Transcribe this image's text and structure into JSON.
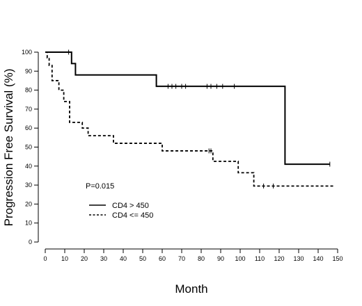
{
  "chart_data": {
    "type": "line",
    "subtype": "kaplan-meier step",
    "title": "",
    "xlabel": "Month",
    "ylabel": "Progression Free Survival (%)",
    "xlim": [
      0,
      150
    ],
    "ylim": [
      0,
      100
    ],
    "xticks": [
      0,
      10,
      20,
      30,
      40,
      50,
      60,
      70,
      80,
      90,
      100,
      110,
      120,
      130,
      140,
      150
    ],
    "yticks": [
      0,
      10,
      20,
      30,
      40,
      50,
      60,
      70,
      80,
      90,
      100
    ],
    "grid": false,
    "legend_position": "bottom-left",
    "annotation": "P=0.015",
    "series": [
      {
        "name": "CD4 > 450",
        "style": "solid",
        "color": "#000000",
        "steps": [
          [
            0,
            100
          ],
          [
            13.5,
            94
          ],
          [
            15.5,
            88
          ],
          [
            57,
            82
          ],
          [
            123,
            41
          ],
          [
            146,
            41
          ]
        ],
        "censored": [
          [
            12,
            100
          ],
          [
            63,
            82
          ],
          [
            65,
            82
          ],
          [
            67,
            82
          ],
          [
            70,
            82
          ],
          [
            72,
            82
          ],
          [
            83,
            82
          ],
          [
            85,
            82
          ],
          [
            88,
            82
          ],
          [
            91,
            82
          ],
          [
            97,
            82
          ],
          [
            146,
            41
          ]
        ]
      },
      {
        "name": "CD4 <= 450",
        "style": "dashed",
        "color": "#000000",
        "steps": [
          [
            0,
            100
          ],
          [
            1,
            97
          ],
          [
            2,
            93
          ],
          [
            3.5,
            85
          ],
          [
            7,
            80
          ],
          [
            9.5,
            74
          ],
          [
            12.5,
            63
          ],
          [
            19,
            60
          ],
          [
            22,
            56
          ],
          [
            35,
            52
          ],
          [
            60,
            48
          ],
          [
            86,
            42.5
          ],
          [
            99,
            36.5
          ],
          [
            107,
            29.5
          ],
          [
            148,
            29.5
          ]
        ],
        "censored": [
          [
            84,
            48
          ],
          [
            85,
            48
          ],
          [
            112,
            29.5
          ],
          [
            117,
            29.5
          ]
        ]
      }
    ]
  }
}
